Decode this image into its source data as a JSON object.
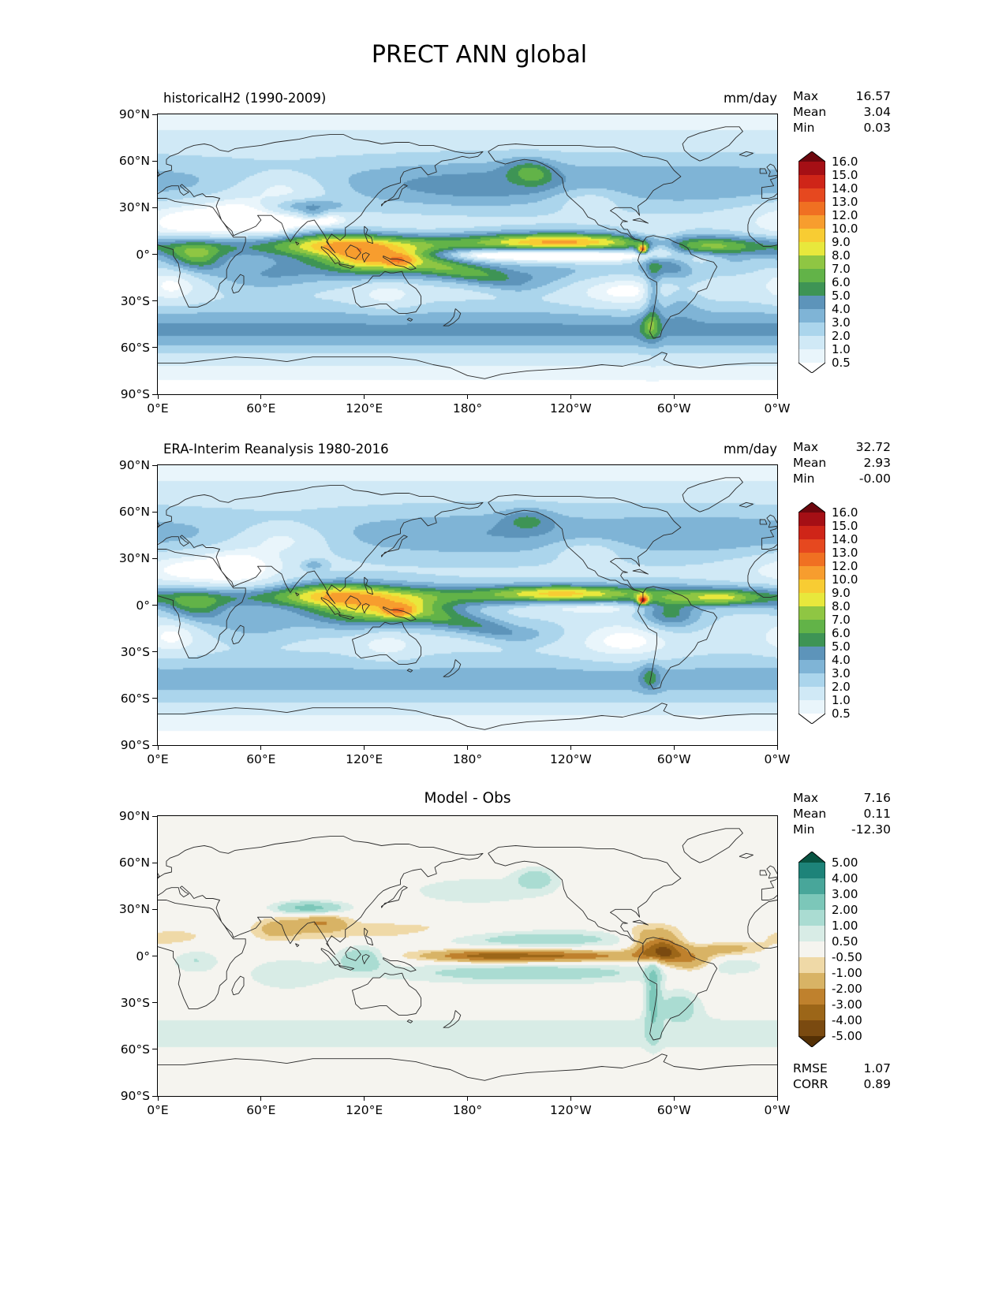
{
  "chart_data": {
    "type": "heatmap",
    "subtype": "filled-contour-global-maps",
    "title": "PRECT ANN global",
    "projection": "equirectangular",
    "lon_ticks": [
      "0°E",
      "60°E",
      "120°E",
      "180°",
      "120°W",
      "60°W",
      "0°W"
    ],
    "lat_ticks": [
      "90°N",
      "60°N",
      "30°N",
      "0°",
      "30°S",
      "60°S",
      "90°S"
    ],
    "maps": [
      {
        "title": "historicalH2 (1990-2009)",
        "units": "mm/day",
        "field": "model",
        "stats": [
          {
            "label": "Max",
            "value": "16.57"
          },
          {
            "label": "Mean",
            "value": "3.04"
          },
          {
            "label": "Min",
            "value": "0.03"
          }
        ],
        "colorbar": {
          "levels": [
            0.5,
            1.0,
            2.0,
            3.0,
            4.0,
            5.0,
            6.0,
            7.0,
            8.0,
            9.0,
            10.0,
            12.0,
            13.0,
            14.0,
            15.0,
            16.0
          ],
          "tick_labels": [
            "0.5",
            "1.0",
            "2.0",
            "3.0",
            "4.0",
            "5.0",
            "6.0",
            "7.0",
            "8.0",
            "9.0",
            "10.0",
            "12.0",
            "13.0",
            "14.0",
            "15.0",
            "16.0"
          ],
          "colors": [
            "#ffffff",
            "#e9f5fb",
            "#d0e9f6",
            "#abd5ec",
            "#7fb4d6",
            "#5d94ba",
            "#3e9455",
            "#62b348",
            "#8fc643",
            "#e8e83c",
            "#f8cc33",
            "#f79d2e",
            "#f07022",
            "#e6481f",
            "#cf2518",
            "#a50f15",
            "#6d070e"
          ]
        }
      },
      {
        "title": "ERA-Interim Reanalysis 1980-2016",
        "units": "mm/day",
        "field": "obs",
        "stats": [
          {
            "label": "Max",
            "value": "32.72"
          },
          {
            "label": "Mean",
            "value": "2.93"
          },
          {
            "label": "Min",
            "value": "-0.00"
          }
        ],
        "colorbar": {
          "levels": [
            0.5,
            1.0,
            2.0,
            3.0,
            4.0,
            5.0,
            6.0,
            7.0,
            8.0,
            9.0,
            10.0,
            12.0,
            13.0,
            14.0,
            15.0,
            16.0
          ],
          "tick_labels": [
            "0.5",
            "1.0",
            "2.0",
            "3.0",
            "4.0",
            "5.0",
            "6.0",
            "7.0",
            "8.0",
            "9.0",
            "10.0",
            "12.0",
            "13.0",
            "14.0",
            "15.0",
            "16.0"
          ],
          "colors": [
            "#ffffff",
            "#e9f5fb",
            "#d0e9f6",
            "#abd5ec",
            "#7fb4d6",
            "#5d94ba",
            "#3e9455",
            "#62b348",
            "#8fc643",
            "#e8e83c",
            "#f8cc33",
            "#f79d2e",
            "#f07022",
            "#e6481f",
            "#cf2518",
            "#a50f15",
            "#6d070e"
          ]
        }
      },
      {
        "title": "Model - Obs",
        "units": "",
        "field": "diff",
        "stats": [
          {
            "label": "Max",
            "value": "7.16"
          },
          {
            "label": "Mean",
            "value": "0.11"
          },
          {
            "label": "Min",
            "value": "-12.30"
          }
        ],
        "extra_stats": [
          {
            "label": "RMSE",
            "value": "1.07"
          },
          {
            "label": "CORR",
            "value": "0.89"
          }
        ],
        "colorbar": {
          "levels": [
            -5.0,
            -4.0,
            -3.0,
            -2.0,
            -1.0,
            -0.5,
            0.5,
            1.0,
            2.0,
            3.0,
            4.0,
            5.0
          ],
          "tick_labels": [
            "-5.00",
            "-4.00",
            "-3.00",
            "-2.00",
            "-1.00",
            "-0.50",
            "0.50",
            "1.00",
            "2.00",
            "3.00",
            "4.00",
            "5.00"
          ],
          "colors": [
            "#543005",
            "#7a4a10",
            "#9c6618",
            "#bf812d",
            "#d8b365",
            "#efd9a7",
            "#f5f4ef",
            "#d8ece6",
            "#aadcd2",
            "#7cc7b9",
            "#48a69a",
            "#1d8379",
            "#085442"
          ]
        }
      }
    ]
  }
}
